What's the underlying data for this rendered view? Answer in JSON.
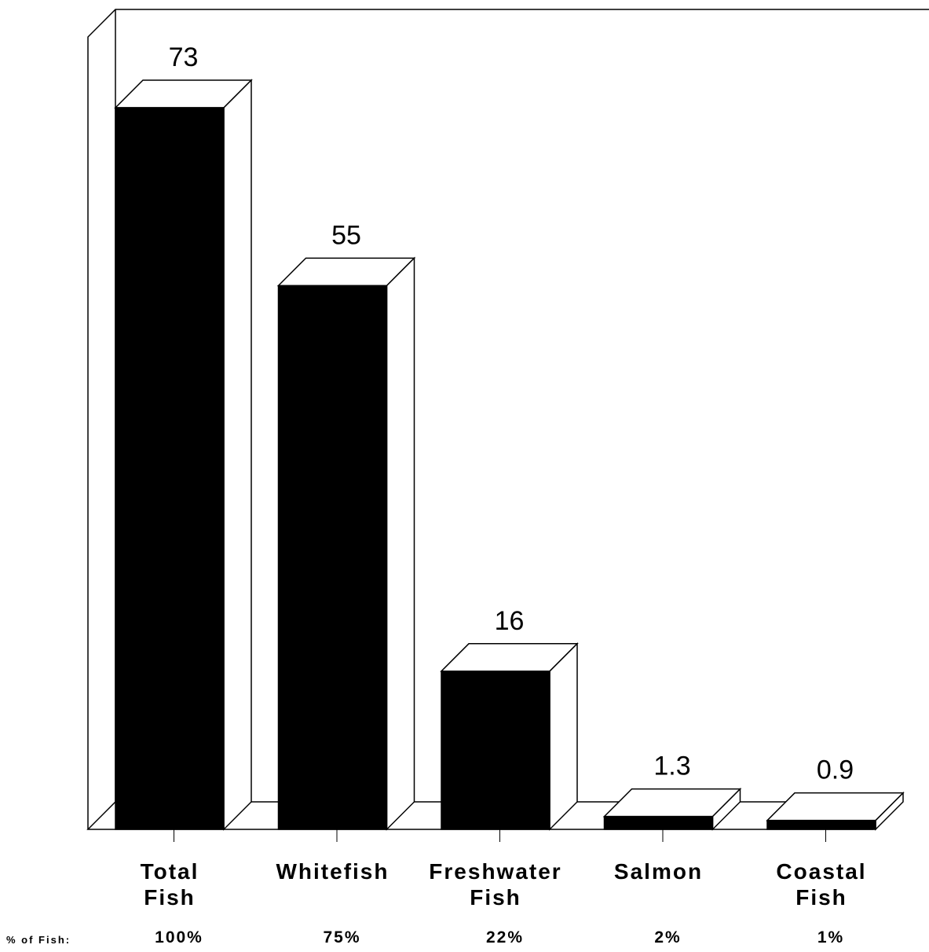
{
  "chart_data": {
    "type": "bar",
    "title": "",
    "xlabel": "",
    "ylabel": "",
    "categories": [
      [
        "Total",
        "Fish"
      ],
      [
        "Whitefish"
      ],
      [
        "Freshwater",
        "Fish"
      ],
      [
        "Salmon"
      ],
      [
        "Coastal",
        "Fish"
      ]
    ],
    "values": [
      73,
      55,
      16,
      1.3,
      0.9
    ],
    "value_labels": [
      "73",
      "55",
      "16",
      "1.3",
      "0.9"
    ],
    "percent_row_label": "% of Fish:",
    "percent_labels": [
      "100%",
      "75%",
      "22%",
      "2%",
      "1%"
    ],
    "ylim": [
      0,
      73
    ],
    "grid": false,
    "legend": "none",
    "style": "3d",
    "colors": {
      "bar_front": "#000000",
      "bar_side": "#ffffff",
      "outline": "#000000"
    }
  }
}
